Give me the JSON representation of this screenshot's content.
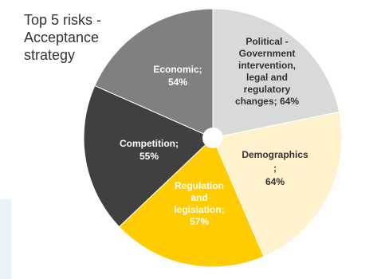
{
  "chart_data": {
    "type": "pie",
    "title": "Top 5 risks -\nAcceptance\nstrategy",
    "slices": [
      {
        "name": "Political - Government intervention, legal and regulatory changes",
        "label_lines": [
          "Political -",
          "Government",
          "intervention,",
          "legal and",
          "regulatory",
          "changes; 64%"
        ],
        "value": 64,
        "color": "#d9d9d9",
        "text_color": "#333333"
      },
      {
        "name": "Demographics",
        "label_lines": [
          "Demographics",
          ";",
          "64%"
        ],
        "value": 64,
        "color": "#fff2cc",
        "text_color": "#333333"
      },
      {
        "name": "Regulation and legislation",
        "label_lines": [
          "Regulation",
          "and",
          "legislation;",
          "57%"
        ],
        "value": 57,
        "color": "#ffcc00",
        "text_color": "#ffffff"
      },
      {
        "name": "Competition",
        "label_lines": [
          "Competition;",
          "55%"
        ],
        "value": 55,
        "color": "#404040",
        "text_color": "#ffffff"
      },
      {
        "name": "Economic",
        "label_lines": [
          "Economic;",
          "54%"
        ],
        "value": 54,
        "color": "#808080",
        "text_color": "#ffffff"
      }
    ],
    "legend": "none"
  }
}
